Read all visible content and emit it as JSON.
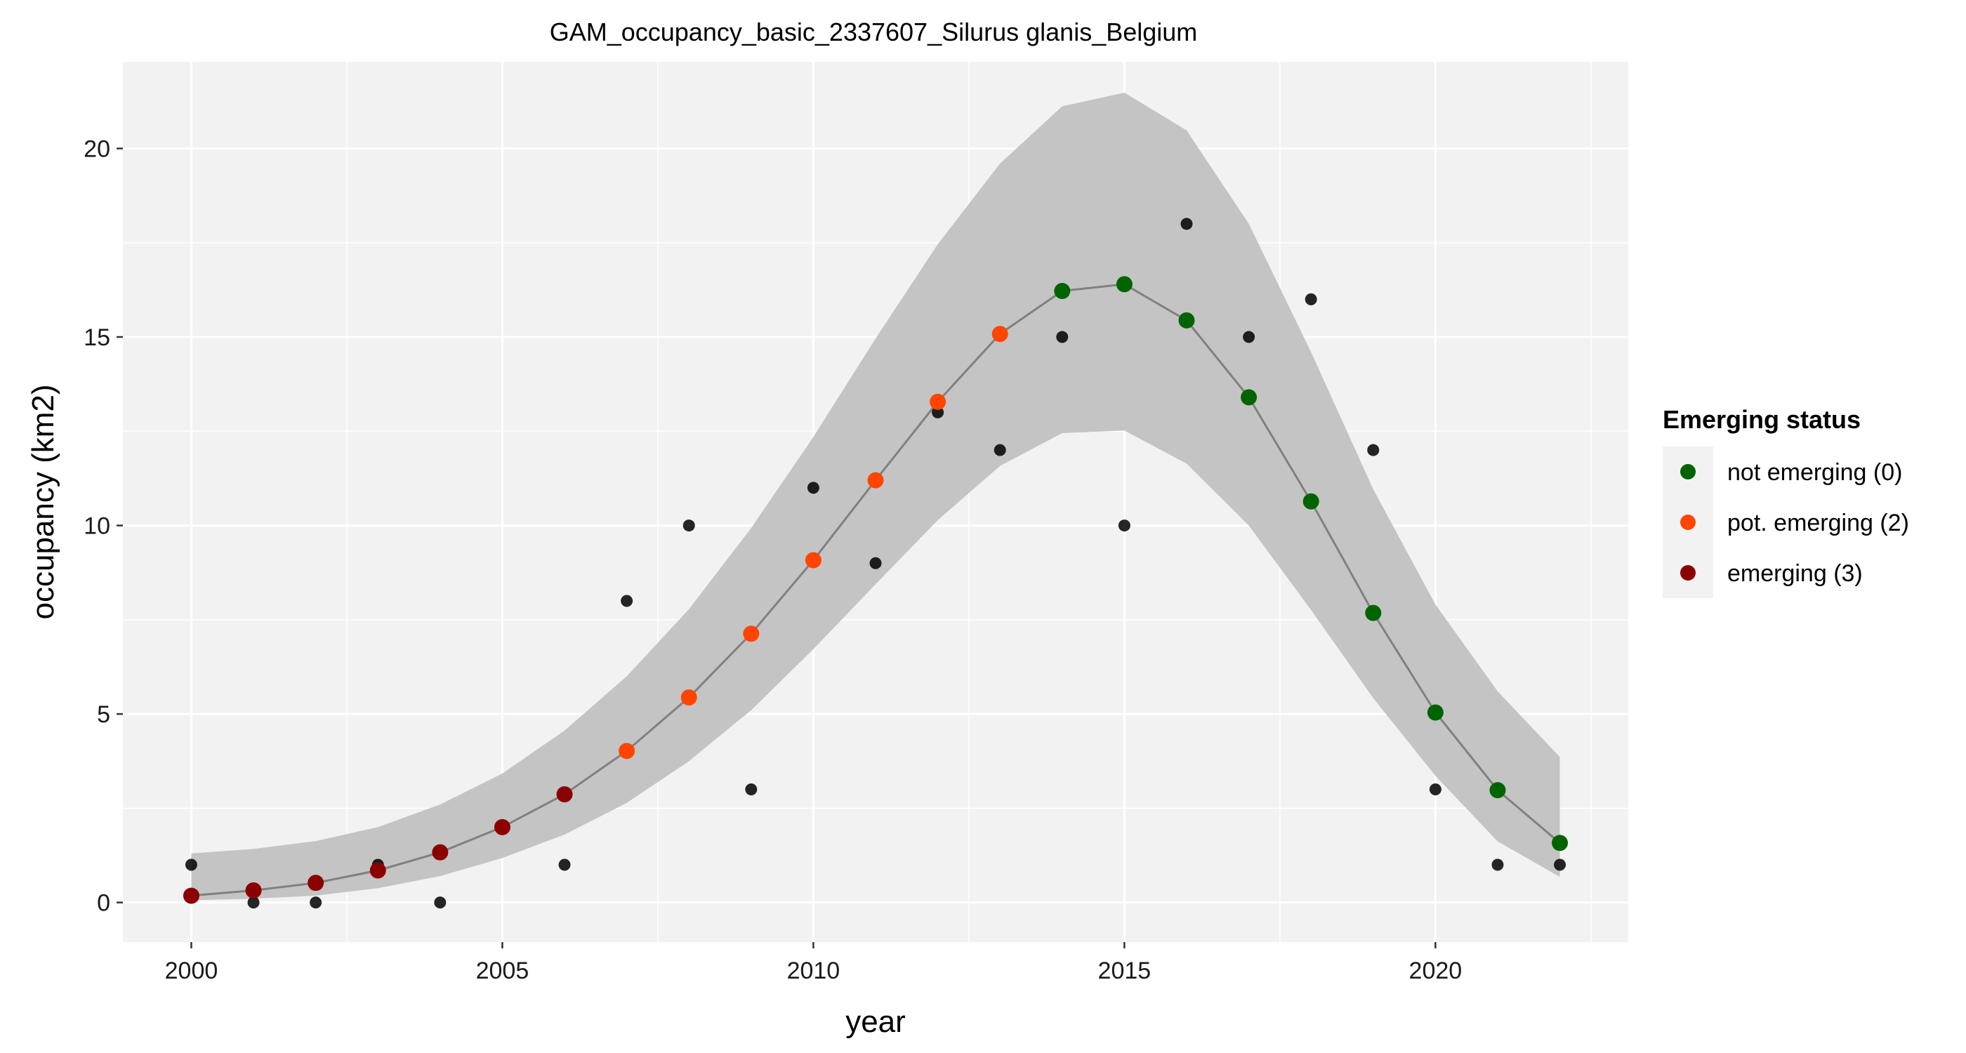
{
  "chart_data": {
    "type": "scatter",
    "title": "GAM_occupancy_basic_2337607_Silurus glanis_Belgium",
    "xlabel": "year",
    "ylabel": "occupancy (km2)",
    "xlim": [
      1998.9,
      2023.1
    ],
    "ylim": [
      -1.05,
      22.3
    ],
    "x_ticks": [
      2000,
      2005,
      2010,
      2015,
      2020
    ],
    "y_ticks": [
      0,
      5,
      10,
      15,
      20
    ],
    "grid": true,
    "legend": {
      "title": "Emerging status",
      "position": "right",
      "entries": [
        {
          "label": "not emerging (0)",
          "color": "#006400"
        },
        {
          "label": "pot. emerging (2)",
          "color": "#FF4500"
        },
        {
          "label": "emerging (3)",
          "color": "#8B0000"
        }
      ]
    },
    "colors": {
      "panel_background": "#F2F2F2",
      "grid": "#FFFFFF",
      "ribbon": "#C4C4C4",
      "fit_line": "#808080",
      "observed": "#000000"
    },
    "observed": {
      "x": [
        2000,
        2001,
        2002,
        2003,
        2004,
        2005,
        2006,
        2007,
        2008,
        2009,
        2010,
        2011,
        2012,
        2013,
        2014,
        2015,
        2016,
        2017,
        2018,
        2019,
        2020,
        2021,
        2022
      ],
      "y": [
        1,
        0,
        0,
        1,
        0,
        2,
        1,
        8,
        10,
        3,
        11,
        9,
        13,
        12,
        15,
        10,
        18,
        15,
        16,
        12,
        3,
        1,
        1
      ]
    },
    "fit": {
      "x": [
        2000,
        2001,
        2002,
        2003,
        2004,
        2005,
        2006,
        2007,
        2008,
        2009,
        2010,
        2011,
        2012,
        2013,
        2014,
        2015,
        2016,
        2017,
        2018,
        2019,
        2020,
        2021,
        2022
      ],
      "y": [
        0.18,
        0.32,
        0.52,
        0.85,
        1.33,
        2.0,
        2.87,
        4.02,
        5.44,
        7.13,
        9.08,
        11.2,
        13.28,
        15.08,
        16.22,
        16.4,
        15.44,
        13.4,
        10.64,
        7.68,
        5.04,
        2.98,
        1.58
      ],
      "lower": [
        0.06,
        0.1,
        0.18,
        0.38,
        0.7,
        1.18,
        1.8,
        2.64,
        3.75,
        5.1,
        6.72,
        8.44,
        10.14,
        11.58,
        12.45,
        12.52,
        11.64,
        10.0,
        7.76,
        5.42,
        3.36,
        1.62,
        0.68
      ],
      "upper": [
        1.3,
        1.42,
        1.63,
        2.0,
        2.6,
        3.42,
        4.56,
        6.0,
        7.78,
        9.93,
        12.35,
        14.96,
        17.46,
        19.6,
        21.12,
        21.48,
        20.48,
        18.0,
        14.6,
        10.96,
        7.9,
        5.6,
        3.86
      ],
      "status": [
        3,
        3,
        3,
        3,
        3,
        3,
        3,
        2,
        2,
        2,
        2,
        2,
        2,
        2,
        0,
        0,
        0,
        0,
        0,
        0,
        0,
        0,
        0
      ]
    }
  }
}
